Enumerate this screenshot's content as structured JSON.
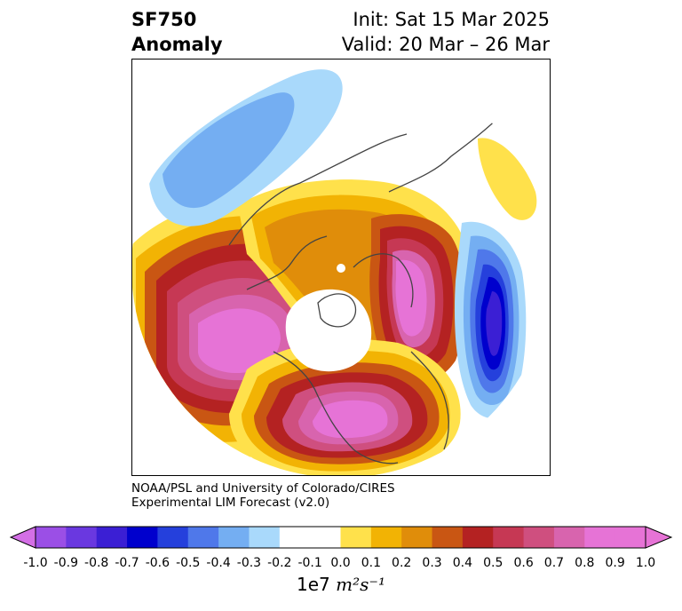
{
  "title": {
    "variable": "SF750",
    "field": "Anomaly",
    "init": "Init: Sat 15 Mar 2025",
    "valid": "Valid: 20 Mar – 26 Mar"
  },
  "credit": {
    "line1": "NOAA/PSL and University of Colorado/CIRES",
    "line2": "Experimental LIM Forecast (v2.0)"
  },
  "colorbar": {
    "ticks": [
      "-1.0",
      "-0.9",
      "-0.8",
      "-0.7",
      "-0.6",
      "-0.5",
      "-0.4",
      "-0.3",
      "-0.2",
      "-0.1",
      "0.0",
      "0.1",
      "0.2",
      "0.3",
      "0.4",
      "0.5",
      "0.6",
      "0.7",
      "0.8",
      "0.9",
      "1.0"
    ],
    "colors": [
      "#9b4fe6",
      "#6a38e0",
      "#3b1fd4",
      "#0000cd",
      "#2540dc",
      "#4f78ea",
      "#74aef2",
      "#a9d9fb",
      "#ffffff",
      "#ffffff",
      "#ffe14b",
      "#f2b304",
      "#e08d0a",
      "#c95613",
      "#b42222",
      "#c63854",
      "#cf4f7f",
      "#d864ae",
      "#e673d6",
      "#e673d6"
    ],
    "extend_low": "#d46fe6",
    "extend_high": "#e673d6",
    "units_prefix": "1e7",
    "units_math": "m²s⁻¹"
  }
}
